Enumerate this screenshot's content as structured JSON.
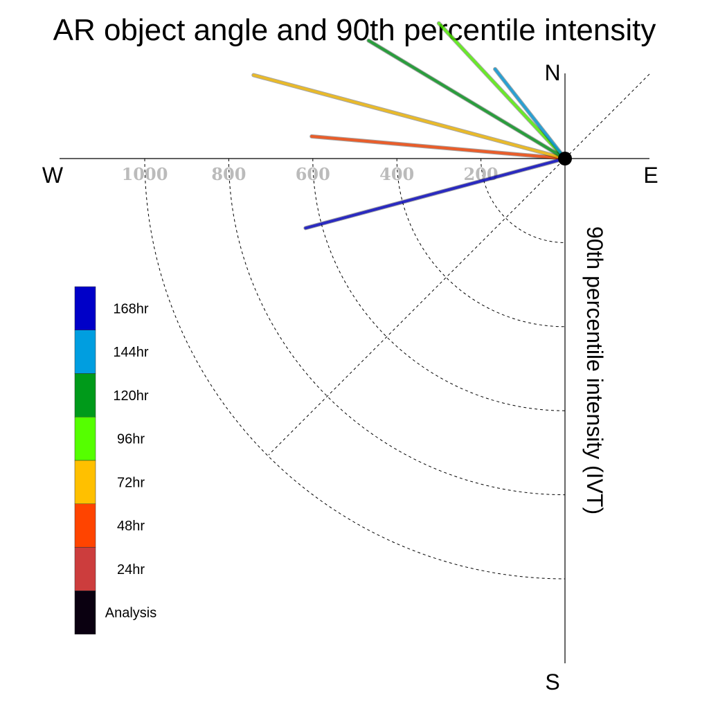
{
  "chart_data": {
    "type": "polar-vector",
    "title": "AR object angle and 90th percentile intensity",
    "ylabel": "90th percentile intensity (IVT)",
    "compass": {
      "north": "N",
      "south": "S",
      "east": "E",
      "west": "W"
    },
    "radial_ticks": [
      200,
      400,
      600,
      800,
      1000
    ],
    "radial_tick_labels": [
      "200",
      "400",
      "600",
      "800",
      "1000"
    ],
    "rmax": 1200,
    "series": [
      {
        "name": "Analysis",
        "color": "#0a0010",
        "angle_deg": null,
        "intensity": 0
      },
      {
        "name": "24hr",
        "color": "#cc3d3d",
        "angle_deg": null,
        "intensity": 0
      },
      {
        "name": "48hr",
        "color": "#ff4400",
        "angle_deg": 175,
        "intensity": 605
      },
      {
        "name": "72hr",
        "color": "#ffc000",
        "angle_deg": 165,
        "intensity": 767
      },
      {
        "name": "96hr",
        "color": "#55ff00",
        "angle_deg": 133,
        "intensity": 440
      },
      {
        "name": "120hr",
        "color": "#009a1a",
        "angle_deg": 149,
        "intensity": 545
      },
      {
        "name": "144hr",
        "color": "#009ee0",
        "angle_deg": 128,
        "intensity": 270
      },
      {
        "name": "168hr",
        "color": "#0000c8",
        "angle_deg": -165,
        "intensity": 639
      }
    ]
  }
}
